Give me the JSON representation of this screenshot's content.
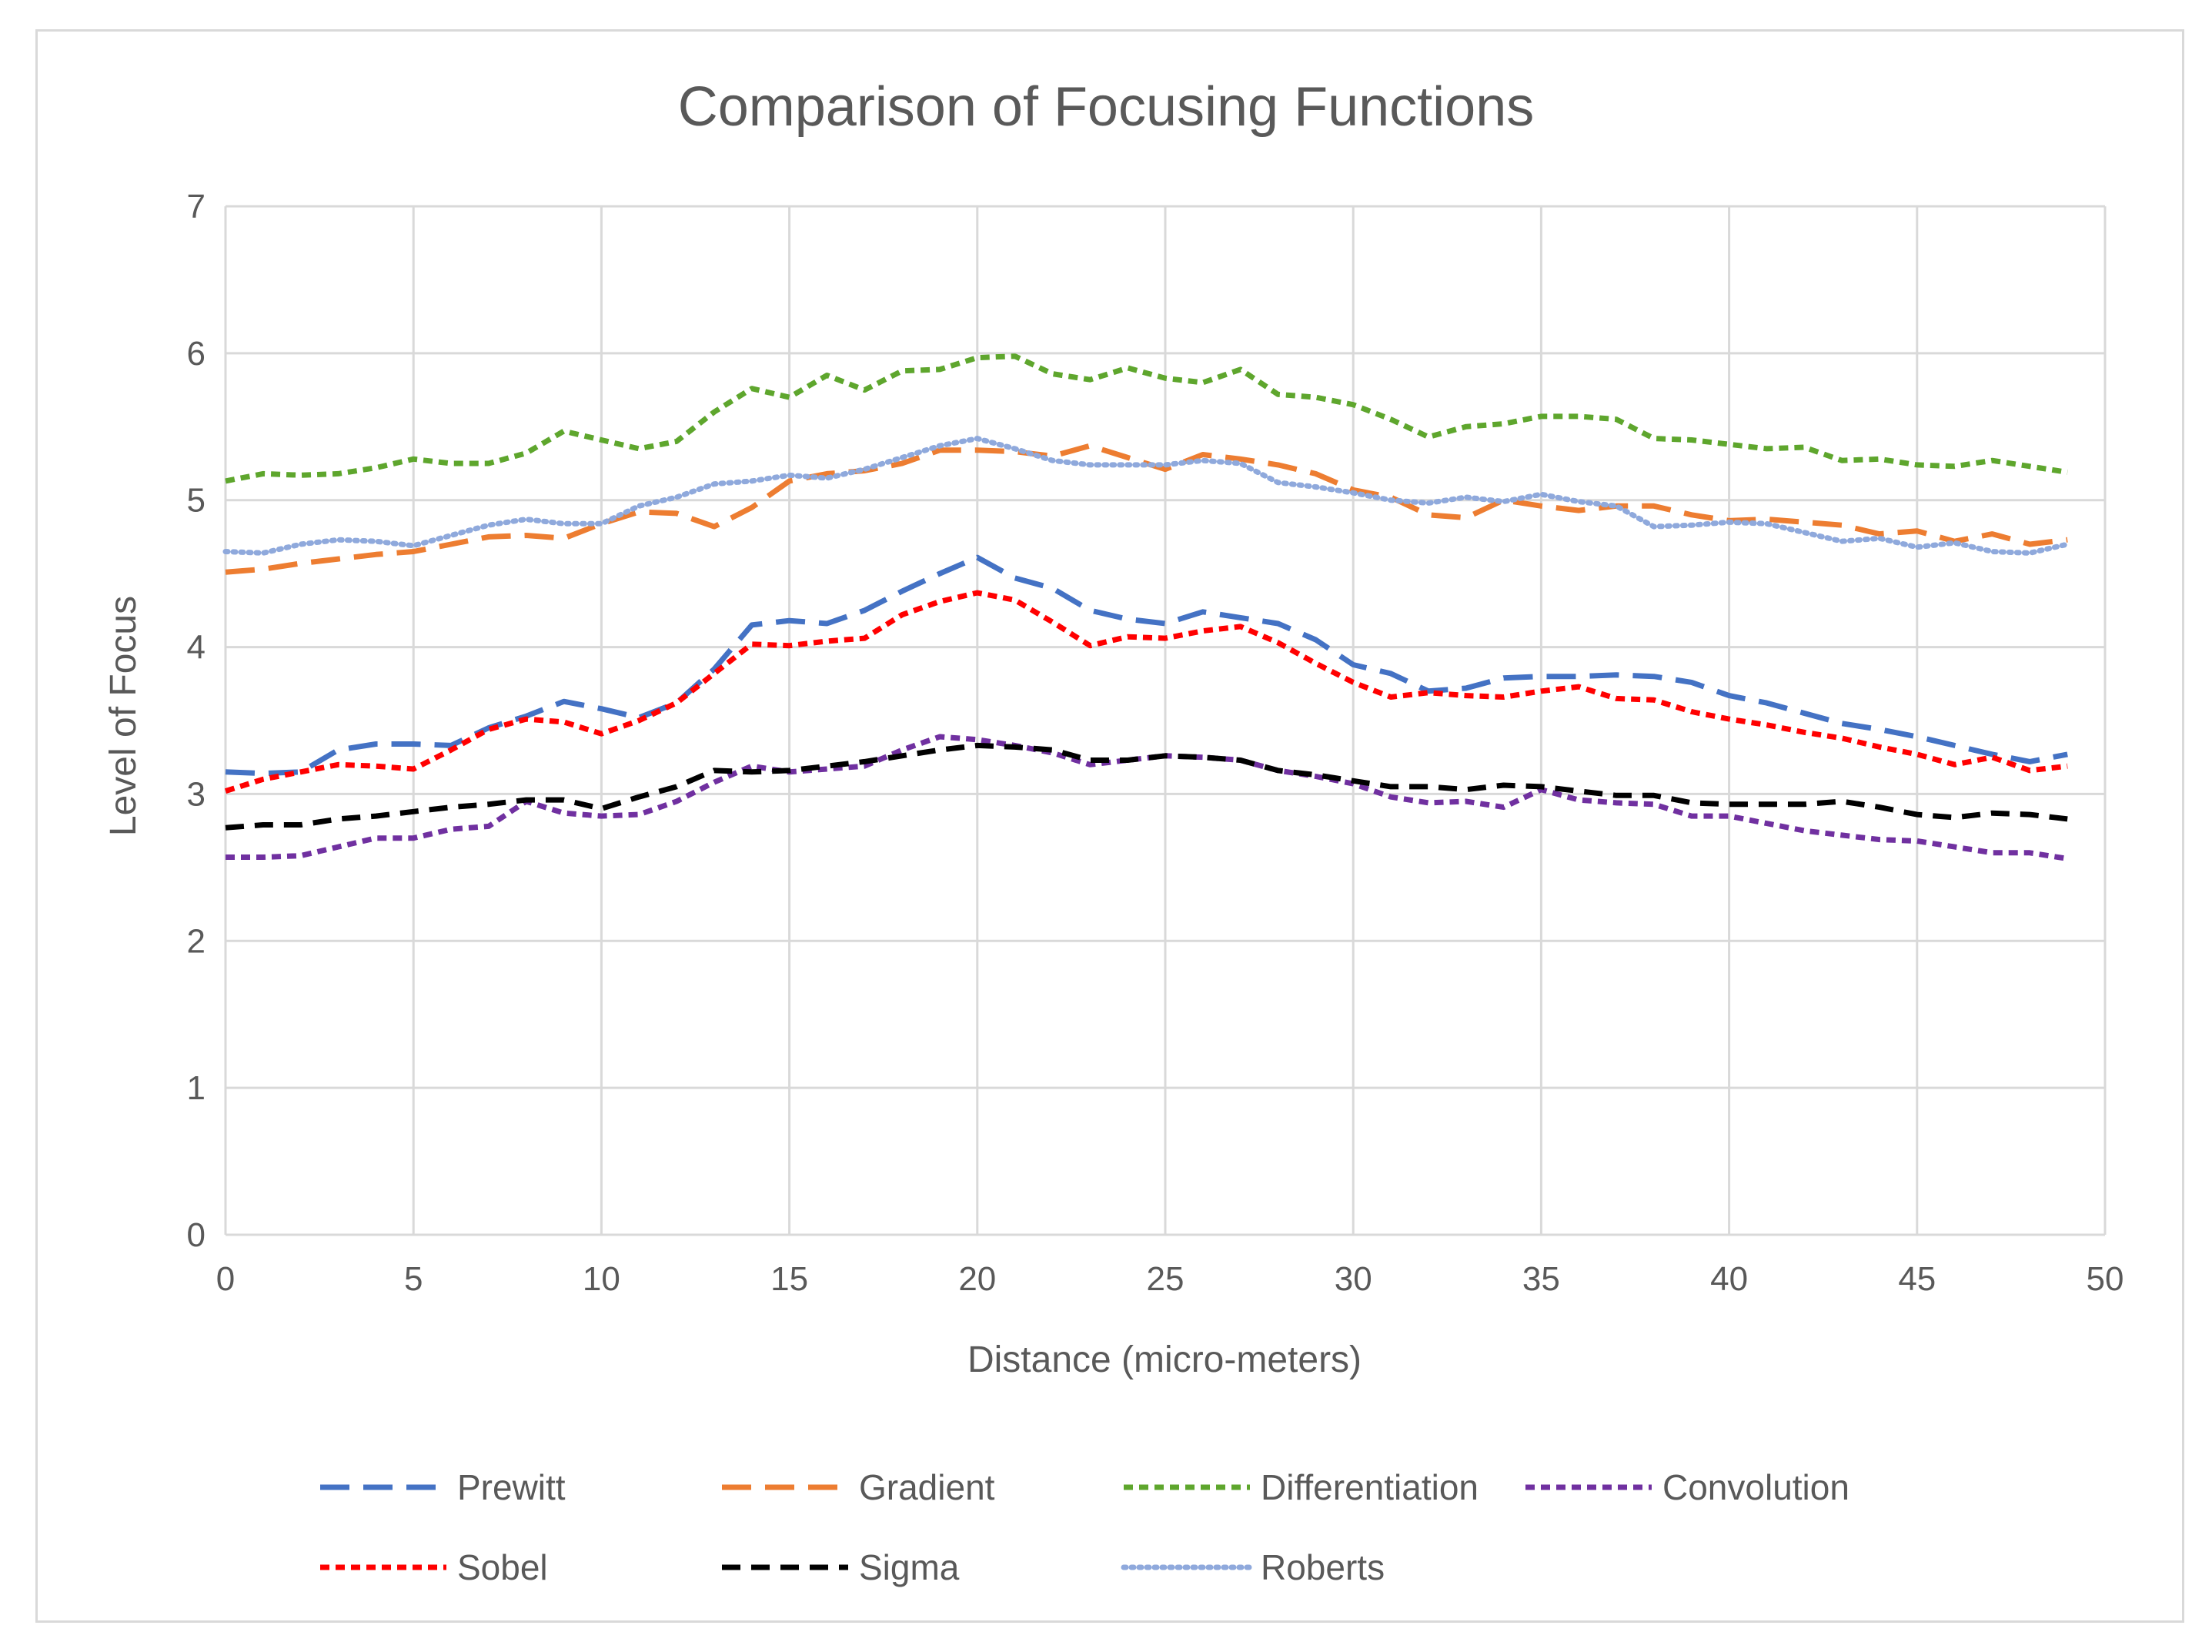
{
  "chart_data": {
    "type": "line",
    "title": "Comparison of Focusing Functions",
    "xlabel": "Distance (micro-meters)",
    "ylabel": "Level of Focus",
    "xlim": [
      0,
      50
    ],
    "ylim": [
      0,
      7
    ],
    "xticks": [
      0,
      5,
      10,
      15,
      20,
      25,
      30,
      35,
      40,
      45,
      50
    ],
    "yticks": [
      0,
      1,
      2,
      3,
      4,
      5,
      6,
      7
    ],
    "grid": true,
    "legend_position": "bottom",
    "x": [
      0,
      1,
      2,
      3,
      4,
      5,
      6,
      7,
      8,
      9,
      10,
      11,
      12,
      13,
      14,
      15,
      16,
      17,
      18,
      19,
      20,
      21,
      22,
      23,
      24,
      25,
      26,
      27,
      28,
      29,
      30,
      31,
      32,
      33,
      34,
      35,
      36,
      37,
      38,
      39,
      40,
      41,
      42,
      43,
      44,
      45,
      46,
      47,
      48,
      49
    ],
    "series": [
      {
        "name": "Prewitt",
        "color": "#4472c4",
        "dash": "long",
        "values": [
          3.15,
          3.14,
          3.15,
          3.3,
          3.34,
          3.34,
          3.33,
          3.45,
          3.53,
          3.63,
          3.58,
          3.52,
          3.62,
          3.85,
          4.15,
          4.18,
          4.16,
          4.25,
          4.38,
          4.5,
          4.61,
          4.47,
          4.4,
          4.25,
          4.19,
          4.16,
          4.24,
          4.2,
          4.16,
          4.05,
          3.88,
          3.82,
          3.7,
          3.72,
          3.79,
          3.8,
          3.8,
          3.81,
          3.8,
          3.76,
          3.67,
          3.62,
          3.55,
          3.48,
          3.44,
          3.39,
          3.33,
          3.27,
          3.22,
          3.27
        ]
      },
      {
        "name": "Gradient",
        "color": "#ed7d31",
        "dash": "long",
        "values": [
          4.51,
          4.53,
          4.57,
          4.6,
          4.63,
          4.65,
          4.7,
          4.75,
          4.76,
          4.74,
          4.84,
          4.92,
          4.91,
          4.82,
          4.95,
          5.13,
          5.18,
          5.2,
          5.25,
          5.34,
          5.34,
          5.33,
          5.3,
          5.37,
          5.29,
          5.21,
          5.31,
          5.28,
          5.24,
          5.18,
          5.07,
          5.02,
          4.9,
          4.88,
          5.0,
          4.96,
          4.93,
          4.96,
          4.96,
          4.9,
          4.86,
          4.87,
          4.85,
          4.83,
          4.77,
          4.79,
          4.72,
          4.77,
          4.7,
          4.73
        ]
      },
      {
        "name": "Differentiation",
        "color": "#5ea62d",
        "dash": "short",
        "values": [
          5.13,
          5.18,
          5.17,
          5.18,
          5.22,
          5.28,
          5.25,
          5.25,
          5.32,
          5.47,
          5.41,
          5.35,
          5.4,
          5.6,
          5.76,
          5.7,
          5.85,
          5.75,
          5.88,
          5.89,
          5.97,
          5.98,
          5.86,
          5.82,
          5.9,
          5.83,
          5.8,
          5.89,
          5.72,
          5.7,
          5.65,
          5.55,
          5.43,
          5.5,
          5.52,
          5.57,
          5.57,
          5.55,
          5.42,
          5.41,
          5.38,
          5.35,
          5.36,
          5.27,
          5.28,
          5.24,
          5.23,
          5.27,
          5.23,
          5.19
        ]
      },
      {
        "name": "Convolution",
        "color": "#7030a0",
        "dash": "short",
        "values": [
          2.57,
          2.57,
          2.58,
          2.64,
          2.7,
          2.7,
          2.76,
          2.78,
          2.95,
          2.87,
          2.85,
          2.86,
          2.95,
          3.08,
          3.19,
          3.15,
          3.17,
          3.19,
          3.3,
          3.39,
          3.37,
          3.33,
          3.28,
          3.2,
          3.23,
          3.26,
          3.25,
          3.23,
          3.16,
          3.12,
          3.07,
          2.98,
          2.94,
          2.95,
          2.91,
          3.03,
          2.96,
          2.94,
          2.93,
          2.85,
          2.85,
          2.8,
          2.75,
          2.72,
          2.69,
          2.68,
          2.64,
          2.6,
          2.6,
          2.56
        ]
      },
      {
        "name": "Sobel",
        "color": "#ff0000",
        "dash": "short",
        "values": [
          3.02,
          3.1,
          3.15,
          3.2,
          3.19,
          3.17,
          3.3,
          3.44,
          3.51,
          3.49,
          3.41,
          3.5,
          3.62,
          3.82,
          4.02,
          4.01,
          4.04,
          4.06,
          4.22,
          4.31,
          4.37,
          4.32,
          4.17,
          4.01,
          4.07,
          4.06,
          4.11,
          4.14,
          4.03,
          3.89,
          3.76,
          3.66,
          3.69,
          3.67,
          3.66,
          3.7,
          3.73,
          3.65,
          3.64,
          3.56,
          3.51,
          3.47,
          3.42,
          3.38,
          3.32,
          3.27,
          3.2,
          3.25,
          3.16,
          3.19
        ]
      },
      {
        "name": "Sigma",
        "color": "#000000",
        "dash": "medium",
        "values": [
          2.77,
          2.79,
          2.79,
          2.83,
          2.85,
          2.88,
          2.91,
          2.93,
          2.96,
          2.96,
          2.9,
          2.98,
          3.05,
          3.16,
          3.15,
          3.16,
          3.19,
          3.22,
          3.26,
          3.3,
          3.33,
          3.32,
          3.3,
          3.23,
          3.23,
          3.26,
          3.25,
          3.23,
          3.16,
          3.13,
          3.09,
          3.05,
          3.05,
          3.03,
          3.06,
          3.05,
          3.02,
          2.99,
          2.99,
          2.94,
          2.93,
          2.93,
          2.93,
          2.95,
          2.91,
          2.86,
          2.84,
          2.87,
          2.86,
          2.83
        ]
      },
      {
        "name": "Roberts",
        "color": "#8fa9dc",
        "dash": "dot",
        "values": [
          4.65,
          4.64,
          4.7,
          4.73,
          4.72,
          4.69,
          4.76,
          4.83,
          4.87,
          4.84,
          4.84,
          4.96,
          5.02,
          5.11,
          5.13,
          5.17,
          5.15,
          5.21,
          5.29,
          5.37,
          5.42,
          5.35,
          5.27,
          5.24,
          5.24,
          5.24,
          5.27,
          5.25,
          5.12,
          5.09,
          5.05,
          5.0,
          4.98,
          5.02,
          4.99,
          5.04,
          4.99,
          4.96,
          4.82,
          4.83,
          4.85,
          4.84,
          4.78,
          4.72,
          4.74,
          4.68,
          4.71,
          4.65,
          4.64,
          4.7
        ]
      }
    ]
  }
}
